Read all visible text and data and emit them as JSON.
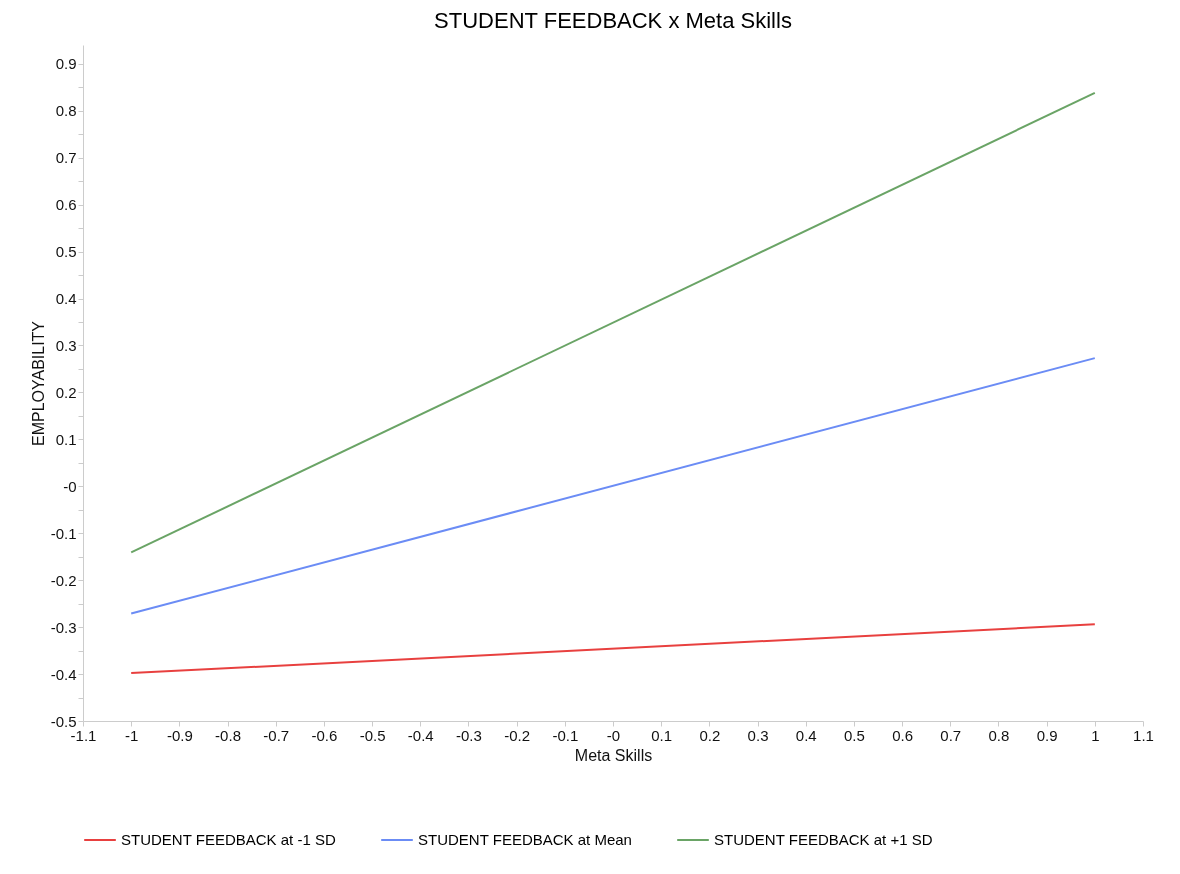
{
  "chart_data": {
    "type": "line",
    "title": "STUDENT FEEDBACK x Meta Skills",
    "xlabel": "Meta Skills",
    "ylabel": "EMPLOYABILITY",
    "xlim": [
      -1.1,
      1.1
    ],
    "xticks": [
      -1.1,
      -1,
      -0.9,
      -0.8,
      -0.7,
      -0.6,
      -0.5,
      -0.4,
      -0.3,
      -0.2,
      -0.1,
      {
        "value": 0,
        "label": "-0"
      },
      0.1,
      0.2,
      0.3,
      0.4,
      0.5,
      0.6,
      0.7,
      0.8,
      0.9,
      1,
      1.1
    ],
    "ylim": [
      -0.5,
      0.94
    ],
    "yticks": [
      -0.5,
      {
        "value": -0.45,
        "label": null
      },
      -0.4,
      {
        "value": -0.35,
        "label": null
      },
      -0.3,
      {
        "value": -0.25,
        "label": null
      },
      -0.2,
      {
        "value": -0.15,
        "label": null
      },
      -0.1,
      {
        "value": -0.05,
        "label": null
      },
      {
        "value": 0,
        "label": "-0"
      },
      {
        "value": 0.05,
        "label": null
      },
      0.1,
      {
        "value": 0.15,
        "label": null
      },
      0.2,
      {
        "value": 0.25,
        "label": null
      },
      0.3,
      {
        "value": 0.35,
        "label": null
      },
      0.4,
      {
        "value": 0.45,
        "label": null
      },
      0.5,
      {
        "value": 0.55,
        "label": null
      },
      0.6,
      {
        "value": 0.65,
        "label": null
      },
      0.7,
      {
        "value": 0.75,
        "label": null
      },
      0.8,
      {
        "value": 0.85,
        "label": null
      },
      0.9
    ],
    "x": [
      -1,
      1
    ],
    "grid": false,
    "legend": "bottom",
    "series": [
      {
        "name": "STUDENT FEEDBACK at -1 SD",
        "color": "#e8403f",
        "values": [
          -0.398,
          -0.294
        ]
      },
      {
        "name": "STUDENT FEEDBACK at Mean",
        "color": "#6b8cf5",
        "values": [
          -0.271,
          0.273
        ]
      },
      {
        "name": "STUDENT FEEDBACK at +1 SD",
        "color": "#6aa466",
        "values": [
          -0.141,
          0.838
        ]
      }
    ]
  }
}
